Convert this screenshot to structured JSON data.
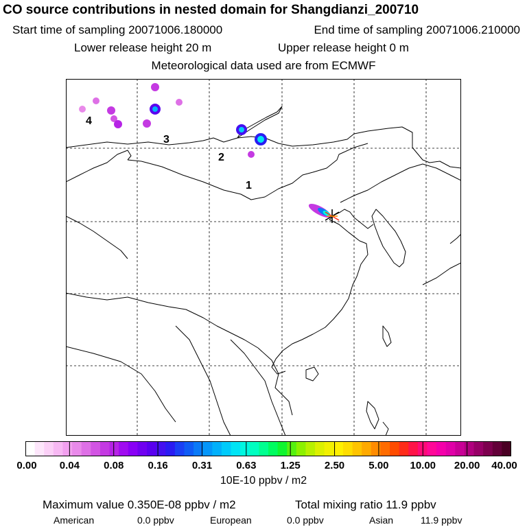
{
  "header": {
    "title": "CO  source contributions in nested domain for Shangdianzi_200710",
    "start_label": "Start time of sampling 20071006.180000",
    "end_label": "End time of sampling 20071006.210000",
    "lower_label": "Lower release height   20 m",
    "upper_label": "Upper release height    0 m",
    "met_label": "Meteorological data used are from ECMWF"
  },
  "map": {
    "region_labels": [
      "1",
      "2",
      "3",
      "4"
    ]
  },
  "colorbar": {
    "ticks": [
      "0.00",
      "0.04",
      "0.08",
      "0.16",
      "0.31",
      "0.63",
      "1.25",
      "2.50",
      "5.00",
      "10.00",
      "20.00",
      "40.00"
    ],
    "unit": "10E-10 ppbv / m2",
    "colors": [
      "#ffffff",
      "#fde6fb",
      "#fbd0f7",
      "#f7b8f3",
      "#f2a0ef",
      "#e98aea",
      "#de70e6",
      "#d254e3",
      "#c43ae2",
      "#b623e6",
      "#a00cf0",
      "#8900f5",
      "#7000f0",
      "#5a00ef",
      "#4410f0",
      "#2a1cf2",
      "#1a40f5",
      "#0f5cf5",
      "#0a7af7",
      "#0596fa",
      "#02b0fb",
      "#00cbfb",
      "#00e4f5",
      "#00f7e0",
      "#00ffc0",
      "#00ff90",
      "#00fc60",
      "#10f530",
      "#55f010",
      "#8cf000",
      "#b8f000",
      "#dcf000",
      "#f2f000",
      "#fff000",
      "#ffdd00",
      "#ffc400",
      "#ffaa00",
      "#ff8c00",
      "#ff6c00",
      "#ff4c00",
      "#ff2c1a",
      "#ff1448",
      "#ff0a78",
      "#ff0898",
      "#f400aa",
      "#e000a8",
      "#c80096",
      "#b0007e",
      "#960066",
      "#7c004e",
      "#620038",
      "#4a0024"
    ]
  },
  "footer": {
    "max_label": "Maximum value  0.350E-08 ppbv / m2",
    "total_label": "Total mixing ratio      11.9 ppbv",
    "american_label": "American",
    "american_value": "0.0 ppbv",
    "european_label": "European",
    "european_value": "0.0 ppbv",
    "asian_label": "Asian",
    "asian_value": "11.9 ppbv"
  }
}
